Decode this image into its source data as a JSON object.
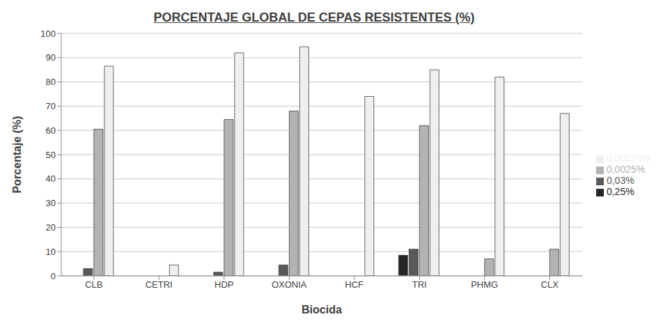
{
  "chart_data": {
    "type": "bar",
    "title": "PORCENTAJE GLOBAL DE CEPAS RESISTENTES (%)",
    "x_label": "Biocida",
    "y_label": "Porcentaje (%)",
    "categories": [
      "CLB",
      "CETRI",
      "HDP",
      "OXONIA",
      "HCF",
      "TRI",
      "PHMG",
      "CLX"
    ],
    "series": [
      {
        "name": "0,25%",
        "color": "#262626",
        "values": [
          0,
          0,
          0,
          0,
          0,
          8.5,
          0,
          0
        ]
      },
      {
        "name": "0,03%",
        "color": "#595959",
        "values": [
          3,
          0,
          1.5,
          4.5,
          0,
          11,
          0,
          0
        ]
      },
      {
        "name": "0,0025%",
        "color": "#b3b3b3",
        "values": [
          60.5,
          0,
          64.5,
          68,
          0,
          62,
          7,
          11
        ]
      },
      {
        "name": "0,00025%",
        "color": "#efefef",
        "values": [
          86.5,
          4.5,
          92,
          94.5,
          74,
          85,
          82,
          67
        ]
      }
    ],
    "ylim": [
      0,
      100
    ],
    "yticks": [
      0,
      10,
      20,
      30,
      40,
      50,
      60,
      70,
      80,
      90,
      100
    ],
    "grid": true,
    "legend": "right"
  }
}
